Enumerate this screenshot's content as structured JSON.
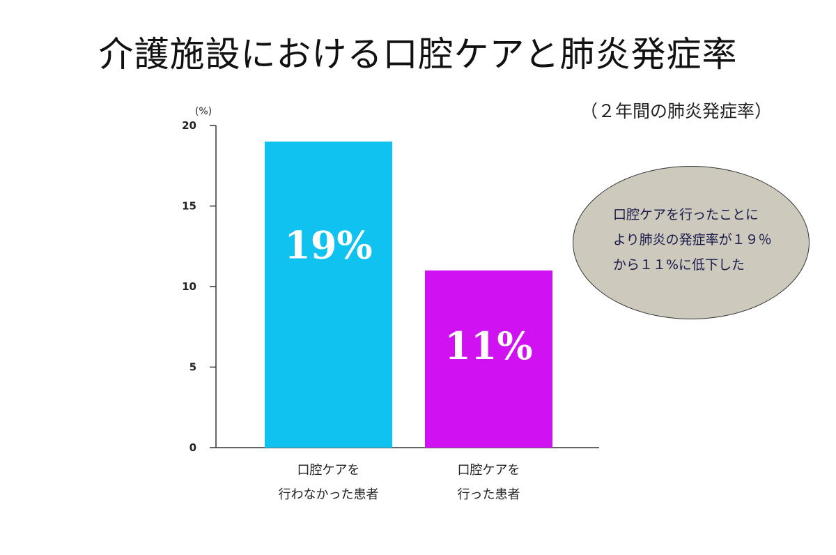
{
  "title": "介護施設における口腔ケアと肺炎発症率",
  "subtitle": "（２年間の肺炎発症率）",
  "callout": {
    "lines": [
      "口腔ケアを行ったことに",
      "より肺炎の発症率が１９％",
      "から１１%に低下した"
    ]
  },
  "colors": {
    "bar1": "#10c2ef",
    "bar2": "#d012f3",
    "callout_bg": "#cdc9bd"
  },
  "chart_data": {
    "type": "bar",
    "categories": [
      [
        "口腔ケアを",
        "行わなかった患者"
      ],
      [
        "口腔ケアを",
        "行った患者"
      ]
    ],
    "values": [
      19,
      11
    ],
    "data_labels": [
      "19%",
      "11%"
    ],
    "ylabel": "(%)",
    "ylim": [
      0,
      20
    ],
    "yticks": [
      0,
      5,
      10,
      15,
      20
    ],
    "grid": false,
    "legend": "none"
  }
}
